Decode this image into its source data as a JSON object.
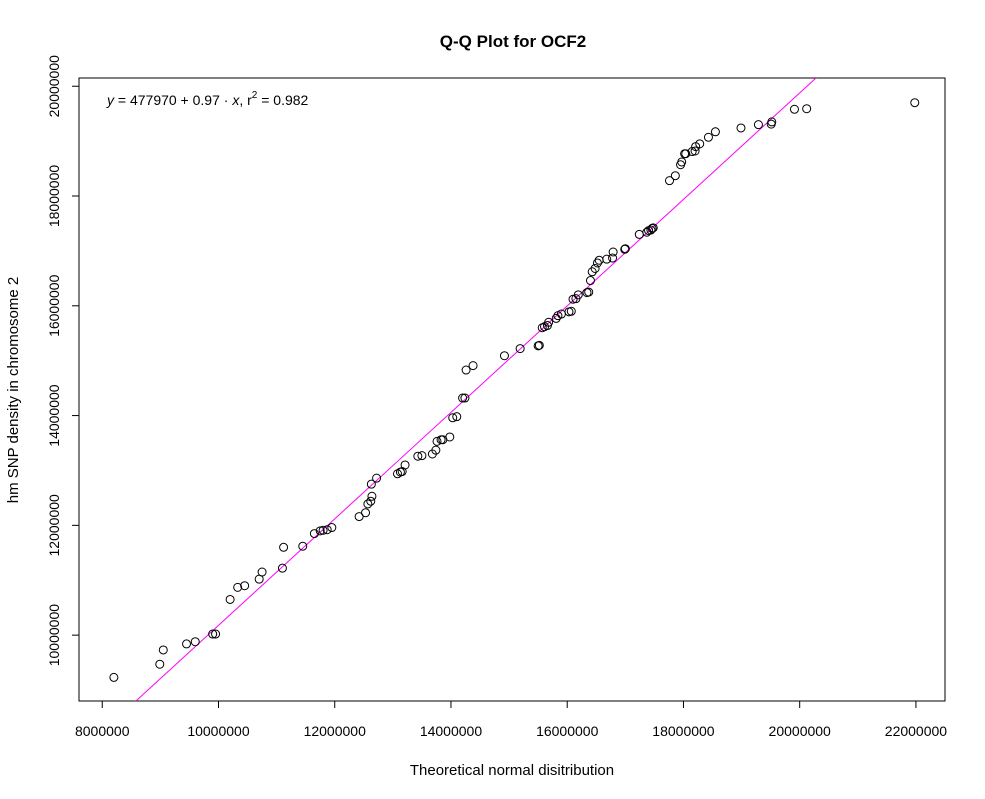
{
  "chart_data": {
    "type": "scatter",
    "title": "Q-Q Plot for OCF2",
    "xlabel": "Theoretical normal disitribution",
    "ylabel": "hm SNP density in chromosome 2",
    "xlim": [
      7600000,
      22500000
    ],
    "ylim": [
      8800000,
      20150000
    ],
    "x_ticks": [
      8000000,
      10000000,
      12000000,
      14000000,
      16000000,
      18000000,
      20000000,
      22000000
    ],
    "x_tick_labels": [
      "8000000",
      "10000000",
      "12000000",
      "14000000",
      "16000000",
      "18000000",
      "20000000",
      "22000000"
    ],
    "y_ticks": [
      10000000,
      12000000,
      14000000,
      16000000,
      18000000,
      20000000
    ],
    "y_tick_labels": [
      "10000000",
      "12000000",
      "14000000",
      "16000000",
      "18000000",
      "20000000"
    ],
    "grid": false,
    "fit_line": {
      "intercept": 477970,
      "slope": 0.97,
      "color": "#ff00ff"
    },
    "annotation": {
      "y_var": "y",
      "equals_intercept": " = 477970 + 0.97 · ",
      "x_var": "x",
      "r_prefix": ",  r",
      "r_exp": "2",
      "r_value": " = 0.982"
    },
    "point_color": "#000000",
    "points": [
      [
        8200000,
        9230000
      ],
      [
        8990000,
        9470000
      ],
      [
        9050000,
        9730000
      ],
      [
        9450000,
        9840000
      ],
      [
        9600000,
        9880000
      ],
      [
        9900000,
        10020000
      ],
      [
        9950000,
        10020000
      ],
      [
        10200000,
        10650000
      ],
      [
        10330000,
        10870000
      ],
      [
        10450000,
        10900000
      ],
      [
        10700000,
        11020000
      ],
      [
        10750000,
        11150000
      ],
      [
        11100000,
        11220000
      ],
      [
        11120000,
        11600000
      ],
      [
        11450000,
        11620000
      ],
      [
        11650000,
        11850000
      ],
      [
        11750000,
        11900000
      ],
      [
        11800000,
        11910000
      ],
      [
        11870000,
        11920000
      ],
      [
        11950000,
        11960000
      ],
      [
        12420000,
        12160000
      ],
      [
        12530000,
        12230000
      ],
      [
        12570000,
        12390000
      ],
      [
        12620000,
        12440000
      ],
      [
        12640000,
        12530000
      ],
      [
        12630000,
        12750000
      ],
      [
        12720000,
        12860000
      ],
      [
        13080000,
        12940000
      ],
      [
        13130000,
        12970000
      ],
      [
        13160000,
        12980000
      ],
      [
        13210000,
        13100000
      ],
      [
        13430000,
        13260000
      ],
      [
        13500000,
        13270000
      ],
      [
        13680000,
        13300000
      ],
      [
        13740000,
        13370000
      ],
      [
        13760000,
        13530000
      ],
      [
        13830000,
        13560000
      ],
      [
        13860000,
        13560000
      ],
      [
        13980000,
        13610000
      ],
      [
        14030000,
        13960000
      ],
      [
        14100000,
        13980000
      ],
      [
        14200000,
        14320000
      ],
      [
        14240000,
        14320000
      ],
      [
        14260000,
        14830000
      ],
      [
        14380000,
        14910000
      ],
      [
        14920000,
        15090000
      ],
      [
        15190000,
        15220000
      ],
      [
        15500000,
        15270000
      ],
      [
        15520000,
        15280000
      ],
      [
        15570000,
        15600000
      ],
      [
        15610000,
        15620000
      ],
      [
        15660000,
        15640000
      ],
      [
        15680000,
        15700000
      ],
      [
        15810000,
        15770000
      ],
      [
        15840000,
        15820000
      ],
      [
        15900000,
        15850000
      ],
      [
        16030000,
        15890000
      ],
      [
        16070000,
        15900000
      ],
      [
        16100000,
        16120000
      ],
      [
        16150000,
        16130000
      ],
      [
        16190000,
        16200000
      ],
      [
        16340000,
        16240000
      ],
      [
        16370000,
        16250000
      ],
      [
        16400000,
        16460000
      ],
      [
        16430000,
        16620000
      ],
      [
        16480000,
        16680000
      ],
      [
        16520000,
        16780000
      ],
      [
        16550000,
        16830000
      ],
      [
        16680000,
        16850000
      ],
      [
        16780000,
        16870000
      ],
      [
        16790000,
        16980000
      ],
      [
        16990000,
        17030000
      ],
      [
        17000000,
        17040000
      ],
      [
        17240000,
        17300000
      ],
      [
        17370000,
        17340000
      ],
      [
        17400000,
        17370000
      ],
      [
        17440000,
        17380000
      ],
      [
        17460000,
        17410000
      ],
      [
        17480000,
        17420000
      ],
      [
        17760000,
        18280000
      ],
      [
        17860000,
        18370000
      ],
      [
        17950000,
        18570000
      ],
      [
        17970000,
        18620000
      ],
      [
        18020000,
        18770000
      ],
      [
        18040000,
        18770000
      ],
      [
        18150000,
        18810000
      ],
      [
        18200000,
        18820000
      ],
      [
        18210000,
        18900000
      ],
      [
        18280000,
        18950000
      ],
      [
        18430000,
        19070000
      ],
      [
        18550000,
        19170000
      ],
      [
        18990000,
        19240000
      ],
      [
        19290000,
        19300000
      ],
      [
        19510000,
        19310000
      ],
      [
        19520000,
        19350000
      ],
      [
        19910000,
        19580000
      ],
      [
        20120000,
        19590000
      ],
      [
        21980000,
        19700000
      ]
    ]
  }
}
